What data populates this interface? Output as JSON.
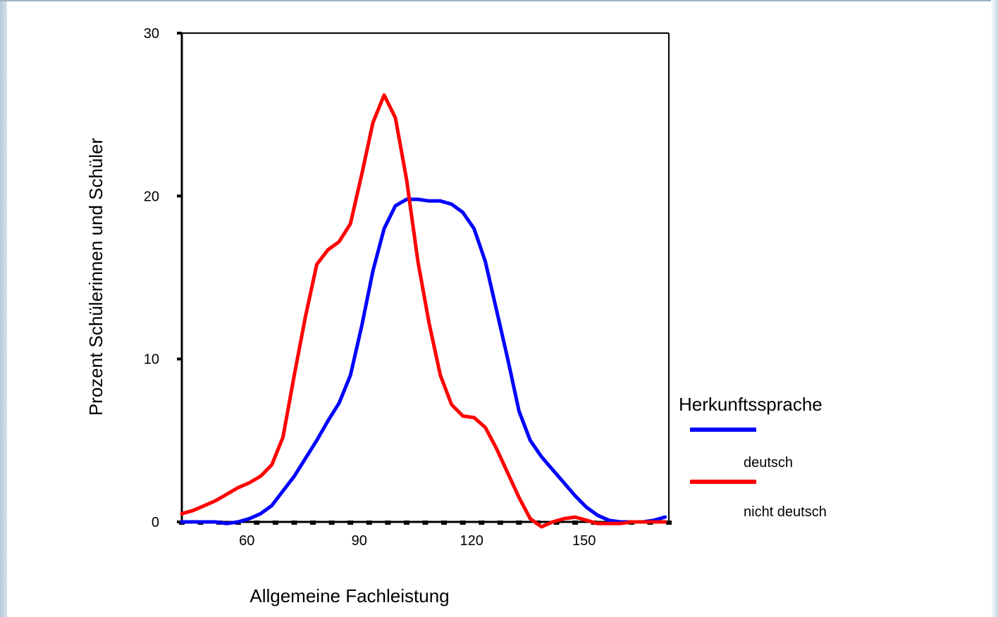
{
  "chart_data": {
    "type": "line",
    "xlabel": "Allgemeine Fachleistung",
    "ylabel": "Prozent Schülerinnen und Schüler",
    "xlim": [
      40,
      170
    ],
    "ylim": [
      0,
      30
    ],
    "xticks": [
      60,
      90,
      120,
      150
    ],
    "yticks": [
      0,
      10,
      20,
      30
    ],
    "grid": false,
    "legend": {
      "title": "Herkunftssprache",
      "position": "right"
    },
    "series": [
      {
        "name": "deutsch",
        "color": "#0000ff",
        "x": [
          40,
          43,
          46,
          49,
          52,
          55,
          58,
          61,
          64,
          67,
          70,
          73,
          76,
          79,
          82,
          85,
          88,
          91,
          94,
          97,
          100,
          103,
          106,
          109,
          112,
          115,
          118,
          121,
          124,
          127,
          130,
          133,
          136,
          139,
          142,
          145,
          148,
          151,
          154,
          157,
          160,
          163,
          166,
          169
        ],
        "values": [
          0.0,
          0.0,
          0.0,
          0.0,
          -0.1,
          0.0,
          0.2,
          0.5,
          1.0,
          1.9,
          2.8,
          3.9,
          5.0,
          6.2,
          7.3,
          9.0,
          12.0,
          15.4,
          18.0,
          19.4,
          19.8,
          19.8,
          19.7,
          19.7,
          19.5,
          19.0,
          18.0,
          16.0,
          13.0,
          10.0,
          6.8,
          5.0,
          4.0,
          3.2,
          2.4,
          1.6,
          0.9,
          0.4,
          0.1,
          0.0,
          0.0,
          0.0,
          0.1,
          0.3
        ]
      },
      {
        "name": "nicht deutsch",
        "color": "#ff0000",
        "x": [
          40,
          43,
          46,
          49,
          52,
          55,
          58,
          61,
          64,
          67,
          70,
          73,
          76,
          79,
          82,
          85,
          88,
          91,
          94,
          97,
          100,
          103,
          106,
          109,
          112,
          115,
          118,
          121,
          124,
          127,
          130,
          133,
          136,
          139,
          142,
          145,
          148,
          151,
          154,
          157,
          160,
          163,
          166,
          169
        ],
        "values": [
          0.5,
          0.7,
          1.0,
          1.3,
          1.7,
          2.1,
          2.4,
          2.8,
          3.5,
          5.2,
          9.0,
          12.6,
          15.8,
          16.7,
          17.2,
          18.3,
          21.3,
          24.5,
          26.2,
          24.8,
          21.0,
          16.0,
          12.2,
          9.0,
          7.2,
          6.5,
          6.4,
          5.8,
          4.5,
          3.0,
          1.5,
          0.2,
          -0.3,
          0.0,
          0.2,
          0.3,
          0.1,
          -0.1,
          -0.1,
          -0.1,
          0.0,
          0.0,
          0.0,
          0.0
        ]
      }
    ]
  }
}
